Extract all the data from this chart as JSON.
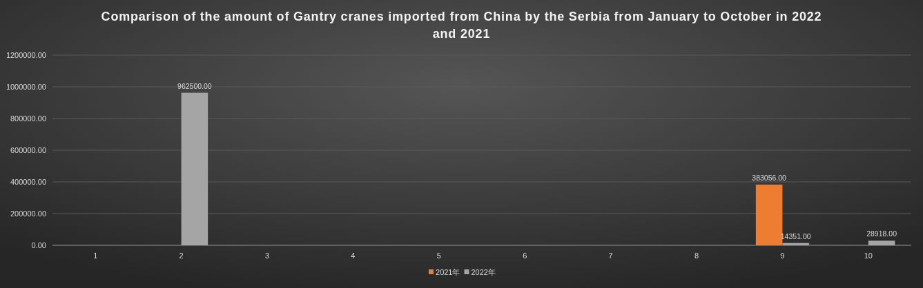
{
  "chart_data": {
    "type": "bar",
    "title": "Comparison of the amount of Gantry cranes imported from China by the Serbia from January to October in 2022 and 2021",
    "categories": [
      "1",
      "2",
      "3",
      "4",
      "5",
      "6",
      "7",
      "8",
      "9",
      "10"
    ],
    "series": [
      {
        "name": "2021年",
        "color": "#ed7d31",
        "values": [
          0,
          0,
          0,
          0,
          0,
          0,
          0,
          0,
          383056,
          0
        ],
        "value_labels": [
          null,
          null,
          null,
          null,
          null,
          null,
          null,
          null,
          "383056.00",
          null
        ]
      },
      {
        "name": "2022年",
        "color": "#a5a5a5",
        "values": [
          0,
          962500,
          0,
          0,
          0,
          0,
          0,
          0,
          14351,
          28918
        ],
        "value_labels": [
          null,
          "962500.00",
          null,
          null,
          null,
          null,
          null,
          null,
          "14351.00",
          "28918.00"
        ]
      }
    ],
    "ylim": [
      0,
      1200000
    ],
    "yticks": [
      {
        "value": 0,
        "label": "0.00"
      },
      {
        "value": 200000,
        "label": "200000.00"
      },
      {
        "value": 400000,
        "label": "400000.00"
      },
      {
        "value": 600000,
        "label": "600000.00"
      },
      {
        "value": 800000,
        "label": "800000.00"
      },
      {
        "value": 1000000,
        "label": "1000000.00"
      },
      {
        "value": 1200000,
        "label": "1200000.00"
      }
    ],
    "grid": "y",
    "legend": "bottom"
  }
}
